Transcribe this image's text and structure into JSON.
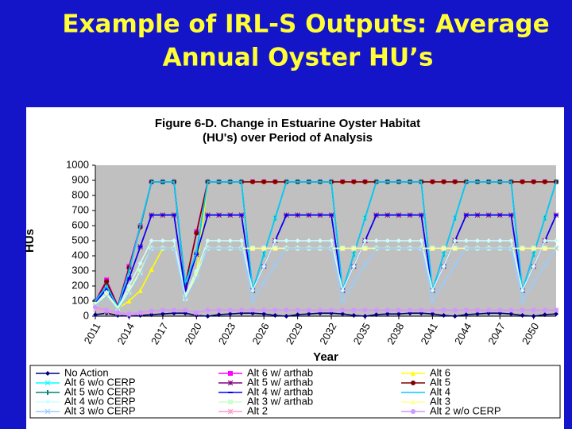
{
  "slide_title": [
    "Example of IRL-S Outputs:  Average",
    "Annual Oyster HU’s"
  ],
  "chart_data": {
    "type": "line",
    "title": [
      "Figure 6-D.  Change in Estuarine Oyster Habitat",
      "(HU's) over Period of Analysis"
    ],
    "x_label": "Year",
    "y_label": "HUs",
    "x": [
      2011,
      2012,
      2013,
      2014,
      2015,
      2016,
      2017,
      2018,
      2019,
      2020,
      2021,
      2022,
      2023,
      2024,
      2025,
      2026,
      2027,
      2028,
      2029,
      2030,
      2031,
      2032,
      2033,
      2034,
      2035,
      2036,
      2037,
      2038,
      2039,
      2040,
      2041,
      2042,
      2043,
      2044,
      2045,
      2046,
      2047,
      2048,
      2049,
      2050,
      2051,
      2052
    ],
    "xlim": [
      2011,
      2052
    ],
    "xticks": [
      2011,
      2014,
      2017,
      2020,
      2023,
      2026,
      2029,
      2032,
      2035,
      2038,
      2041,
      2044,
      2047,
      2050
    ],
    "ylim": [
      0,
      1000
    ],
    "yticks": [
      0,
      100,
      200,
      300,
      400,
      500,
      600,
      700,
      800,
      900,
      1000
    ],
    "plot_background": "#c0c0c0",
    "series": [
      {
        "name": "No Action",
        "color": "#000080",
        "marker": "diamond",
        "values": [
          10,
          20,
          5,
          0,
          5,
          10,
          15,
          20,
          20,
          5,
          0,
          10,
          15,
          20,
          20,
          15,
          5,
          0,
          10,
          15,
          20,
          20,
          15,
          5,
          0,
          10,
          15,
          15,
          20,
          20,
          15,
          5,
          0,
          10,
          15,
          20,
          20,
          15,
          5,
          0,
          10,
          15
        ]
      },
      {
        "name": "Alt 6 w/ arthab",
        "color": "#ff00ff",
        "marker": "square",
        "values": [
          100,
          240,
          70,
          330,
          600,
          890,
          890,
          890,
          200,
          560,
          890,
          890,
          890,
          890,
          890,
          890,
          890,
          890,
          890,
          890,
          890,
          890,
          890,
          890,
          890,
          890,
          890,
          890,
          890,
          890,
          890,
          890,
          890,
          890,
          890,
          890,
          890,
          890,
          890,
          890,
          890,
          890
        ]
      },
      {
        "name": "Alt 6",
        "color": "#ffff00",
        "marker": "triangle",
        "values": [
          90,
          150,
          50,
          100,
          170,
          310,
          450,
          450,
          120,
          280,
          890,
          890,
          890,
          890,
          890,
          890,
          890,
          890,
          890,
          890,
          890,
          890,
          890,
          890,
          890,
          890,
          890,
          890,
          890,
          890,
          890,
          890,
          890,
          890,
          890,
          890,
          890,
          890,
          890,
          890,
          890,
          890
        ]
      },
      {
        "name": "Alt 6 w/o CERP",
        "color": "#00ffff",
        "marker": "x",
        "values": [
          100,
          200,
          60,
          300,
          600,
          890,
          890,
          890,
          220,
          420,
          890,
          890,
          890,
          890,
          170,
          410,
          650,
          890,
          890,
          890,
          890,
          890,
          170,
          410,
          650,
          890,
          890,
          890,
          890,
          890,
          170,
          410,
          650,
          890,
          890,
          890,
          890,
          890,
          170,
          410,
          650,
          890
        ]
      },
      {
        "name": "Alt 5 w/ arthab",
        "color": "#800080",
        "marker": "star",
        "values": [
          90,
          180,
          60,
          250,
          460,
          670,
          670,
          670,
          170,
          410,
          670,
          670,
          670,
          670,
          170,
          330,
          500,
          670,
          670,
          670,
          670,
          670,
          170,
          330,
          500,
          670,
          670,
          670,
          670,
          670,
          170,
          330,
          500,
          670,
          670,
          670,
          670,
          670,
          170,
          330,
          500,
          670
        ]
      },
      {
        "name": "Alt 5",
        "color": "#800000",
        "marker": "circle",
        "values": [
          95,
          230,
          65,
          320,
          590,
          890,
          890,
          890,
          210,
          550,
          890,
          890,
          890,
          890,
          890,
          890,
          890,
          890,
          890,
          890,
          890,
          890,
          890,
          890,
          890,
          890,
          890,
          890,
          890,
          890,
          890,
          890,
          890,
          890,
          890,
          890,
          890,
          890,
          890,
          890,
          890,
          890
        ]
      },
      {
        "name": "Alt 5 w/o CERP",
        "color": "#008080",
        "marker": "vbar",
        "values": [
          100,
          200,
          60,
          300,
          600,
          890,
          890,
          890,
          220,
          420,
          890,
          890,
          890,
          890,
          170,
          410,
          650,
          890,
          890,
          890,
          890,
          890,
          170,
          410,
          650,
          890,
          890,
          890,
          890,
          890,
          170,
          410,
          650,
          890,
          890,
          890,
          890,
          890,
          170,
          410,
          650,
          890
        ]
      },
      {
        "name": "Alt 4 w/ arthab",
        "color": "#0000ff",
        "marker": "hbar",
        "values": [
          90,
          180,
          60,
          250,
          460,
          670,
          670,
          670,
          170,
          410,
          670,
          670,
          670,
          670,
          170,
          330,
          500,
          670,
          670,
          670,
          670,
          670,
          170,
          330,
          500,
          670,
          670,
          670,
          670,
          670,
          170,
          330,
          500,
          670,
          670,
          670,
          670,
          670,
          170,
          330,
          500,
          670
        ]
      },
      {
        "name": "Alt 4",
        "color": "#00ccff",
        "marker": "none",
        "values": [
          100,
          200,
          60,
          300,
          600,
          890,
          890,
          890,
          220,
          420,
          890,
          890,
          890,
          890,
          170,
          410,
          650,
          890,
          890,
          890,
          890,
          890,
          170,
          410,
          650,
          890,
          890,
          890,
          890,
          890,
          170,
          410,
          650,
          890,
          890,
          890,
          890,
          890,
          170,
          410,
          650,
          890
        ]
      },
      {
        "name": "Alt 4 w/o CERP",
        "color": "#ccffff",
        "marker": "diamond",
        "values": [
          80,
          160,
          55,
          200,
          350,
          500,
          500,
          500,
          140,
          300,
          500,
          500,
          500,
          500,
          170,
          330,
          500,
          500,
          500,
          500,
          500,
          500,
          170,
          330,
          500,
          500,
          500,
          500,
          500,
          500,
          170,
          330,
          500,
          500,
          500,
          500,
          500,
          500,
          170,
          330,
          500,
          500
        ]
      },
      {
        "name": "Alt 3 w/ arthab",
        "color": "#ccffcc",
        "marker": "square",
        "values": [
          80,
          150,
          50,
          170,
          300,
          450,
          450,
          450,
          120,
          280,
          450,
          450,
          450,
          450,
          450,
          450,
          450,
          450,
          450,
          450,
          450,
          450,
          450,
          450,
          450,
          450,
          450,
          450,
          450,
          450,
          450,
          450,
          450,
          450,
          450,
          450,
          450,
          450,
          450,
          450,
          450,
          450
        ]
      },
      {
        "name": "Alt 3",
        "color": "#ffff99",
        "marker": "triangle",
        "values": [
          75,
          140,
          45,
          160,
          290,
          450,
          450,
          450,
          115,
          270,
          450,
          450,
          450,
          450,
          450,
          450,
          450,
          450,
          450,
          450,
          450,
          450,
          450,
          450,
          450,
          450,
          450,
          450,
          450,
          450,
          450,
          450,
          450,
          450,
          450,
          450,
          450,
          450,
          450,
          450,
          450,
          450
        ]
      },
      {
        "name": "Alt 3 w/o CERP",
        "color": "#99ccff",
        "marker": "x",
        "values": [
          70,
          130,
          40,
          150,
          280,
          450,
          450,
          450,
          110,
          250,
          450,
          450,
          450,
          450,
          100,
          220,
          340,
          450,
          450,
          450,
          450,
          450,
          100,
          220,
          340,
          450,
          450,
          450,
          450,
          450,
          100,
          220,
          340,
          450,
          450,
          450,
          450,
          450,
          100,
          220,
          340,
          450
        ]
      },
      {
        "name": "Alt 2",
        "color": "#ff99cc",
        "marker": "star",
        "values": [
          50,
          30,
          20,
          10,
          20,
          30,
          40,
          40,
          40,
          20,
          40,
          40,
          40,
          40,
          40,
          40,
          40,
          40,
          40,
          40,
          40,
          40,
          40,
          40,
          40,
          40,
          40,
          40,
          40,
          40,
          40,
          40,
          40,
          40,
          40,
          40,
          40,
          40,
          40,
          40,
          40,
          40
        ]
      },
      {
        "name": "Alt 2 w/o CERP",
        "color": "#cc99ff",
        "marker": "circle",
        "values": [
          60,
          40,
          25,
          15,
          25,
          35,
          40,
          40,
          40,
          25,
          40,
          40,
          40,
          40,
          40,
          40,
          40,
          40,
          40,
          40,
          40,
          40,
          40,
          40,
          40,
          40,
          40,
          40,
          40,
          40,
          40,
          40,
          40,
          40,
          40,
          40,
          40,
          40,
          40,
          40,
          40,
          40
        ]
      }
    ]
  }
}
